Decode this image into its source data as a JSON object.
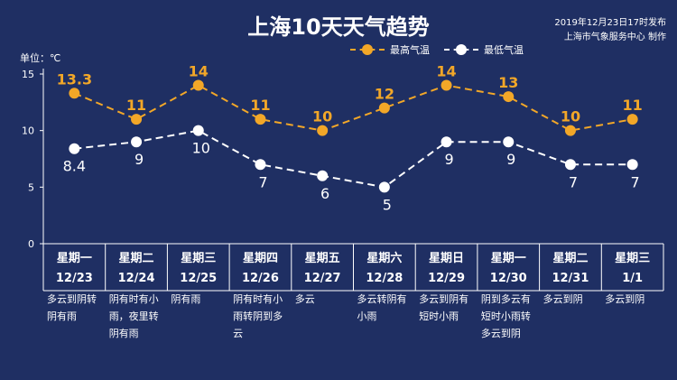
{
  "header": {
    "title": "上海10天天气趋势",
    "publish_time": "2019年12月23日17时发布",
    "publisher": "上海市气象服务中心 制作",
    "unit_label": "单位：℃"
  },
  "legend": {
    "high_label": "最高气温",
    "low_label": "最低气温"
  },
  "colors": {
    "background": "#1f2f63",
    "high": "#f2a728",
    "low": "#ffffff",
    "axis": "#ffffff"
  },
  "chart_data": {
    "type": "line",
    "ylim": [
      0,
      15
    ],
    "yticks": [
      "0",
      "5",
      "10",
      "15"
    ],
    "grid": false,
    "legend_position": "top-right",
    "days": [
      {
        "weekday": "星期一",
        "date": "12/23",
        "high": 13.3,
        "low": 8.4,
        "high_label": "13.3",
        "low_label": "8.4",
        "condition": "多云到阴转阴有雨"
      },
      {
        "weekday": "星期二",
        "date": "12/24",
        "high": 11,
        "low": 9,
        "high_label": "11",
        "low_label": "9",
        "condition": "阴有时有小雨，夜里转阴有雨"
      },
      {
        "weekday": "星期三",
        "date": "12/25",
        "high": 14,
        "low": 10,
        "high_label": "14",
        "low_label": "10",
        "condition": "阴有雨"
      },
      {
        "weekday": "星期四",
        "date": "12/26",
        "high": 11,
        "low": 7,
        "high_label": "11",
        "low_label": "7",
        "condition": "阴有时有小雨转阴到多云"
      },
      {
        "weekday": "星期五",
        "date": "12/27",
        "high": 10,
        "low": 6,
        "high_label": "10",
        "low_label": "6",
        "condition": "多云"
      },
      {
        "weekday": "星期六",
        "date": "12/28",
        "high": 12,
        "low": 5,
        "high_label": "12",
        "low_label": "5",
        "condition": "多云转阴有小雨"
      },
      {
        "weekday": "星期日",
        "date": "12/29",
        "high": 14,
        "low": 9,
        "high_label": "14",
        "low_label": "9",
        "condition": "多云到阴有短时小雨"
      },
      {
        "weekday": "星期一",
        "date": "12/30",
        "high": 13,
        "low": 9,
        "high_label": "13",
        "low_label": "9",
        "condition": "阴到多云有短时小雨转多云到阴"
      },
      {
        "weekday": "星期二",
        "date": "12/31",
        "high": 10,
        "low": 7,
        "high_label": "10",
        "low_label": "7",
        "condition": "多云到阴"
      },
      {
        "weekday": "星期三",
        "date": "1/1",
        "high": 11,
        "low": 7,
        "high_label": "11",
        "low_label": "7",
        "condition": "多云到阴"
      }
    ]
  }
}
